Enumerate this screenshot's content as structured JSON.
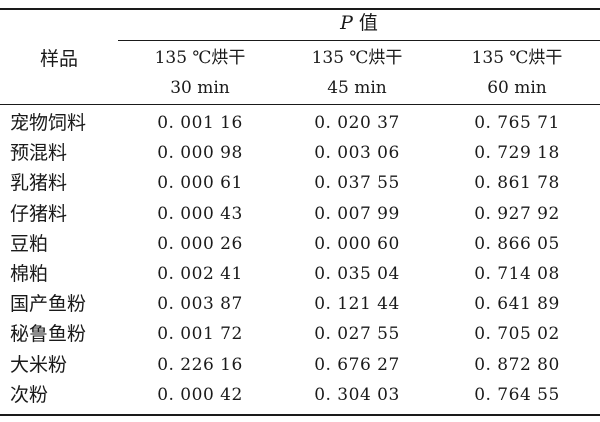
{
  "header": {
    "p_symbol": "P",
    "p_suffix": "值",
    "sample_label": "样品",
    "columns": [
      {
        "line1": "135 ℃烘干",
        "line2": "30 min"
      },
      {
        "line1": "135 ℃烘干",
        "line2": "45 min"
      },
      {
        "line1": "135 ℃烘干",
        "line2": "60 min"
      }
    ]
  },
  "rows": [
    {
      "label": "宠物饲料",
      "values": [
        "0. 001 16",
        "0. 020 37",
        "0. 765 71"
      ]
    },
    {
      "label": "预混料",
      "values": [
        "0. 000 98",
        "0. 003 06",
        "0. 729 18"
      ]
    },
    {
      "label": "乳猪料",
      "values": [
        "0. 000 61",
        "0. 037 55",
        "0. 861 78"
      ]
    },
    {
      "label": "仔猪料",
      "values": [
        "0. 000 43",
        "0. 007 99",
        "0. 927 92"
      ]
    },
    {
      "label": "豆粕",
      "values": [
        "0. 000 26",
        "0. 000 60",
        "0. 866 05"
      ]
    },
    {
      "label": "棉粕",
      "values": [
        "0. 002 41",
        "0. 035 04",
        "0. 714 08"
      ]
    },
    {
      "label": "国产鱼粉",
      "values": [
        "0. 003 87",
        "0. 121 44",
        "0. 641 89"
      ]
    },
    {
      "label": "秘鲁鱼粉",
      "values": [
        "0. 001 72",
        "0. 027 55",
        "0. 705 02"
      ]
    },
    {
      "label": "大米粉",
      "values": [
        "0. 226 16",
        "0. 676 27",
        "0. 872 80"
      ]
    },
    {
      "label": "次粉",
      "values": [
        "0. 000 42",
        "0. 304 03",
        "0. 764 55"
      ]
    }
  ]
}
